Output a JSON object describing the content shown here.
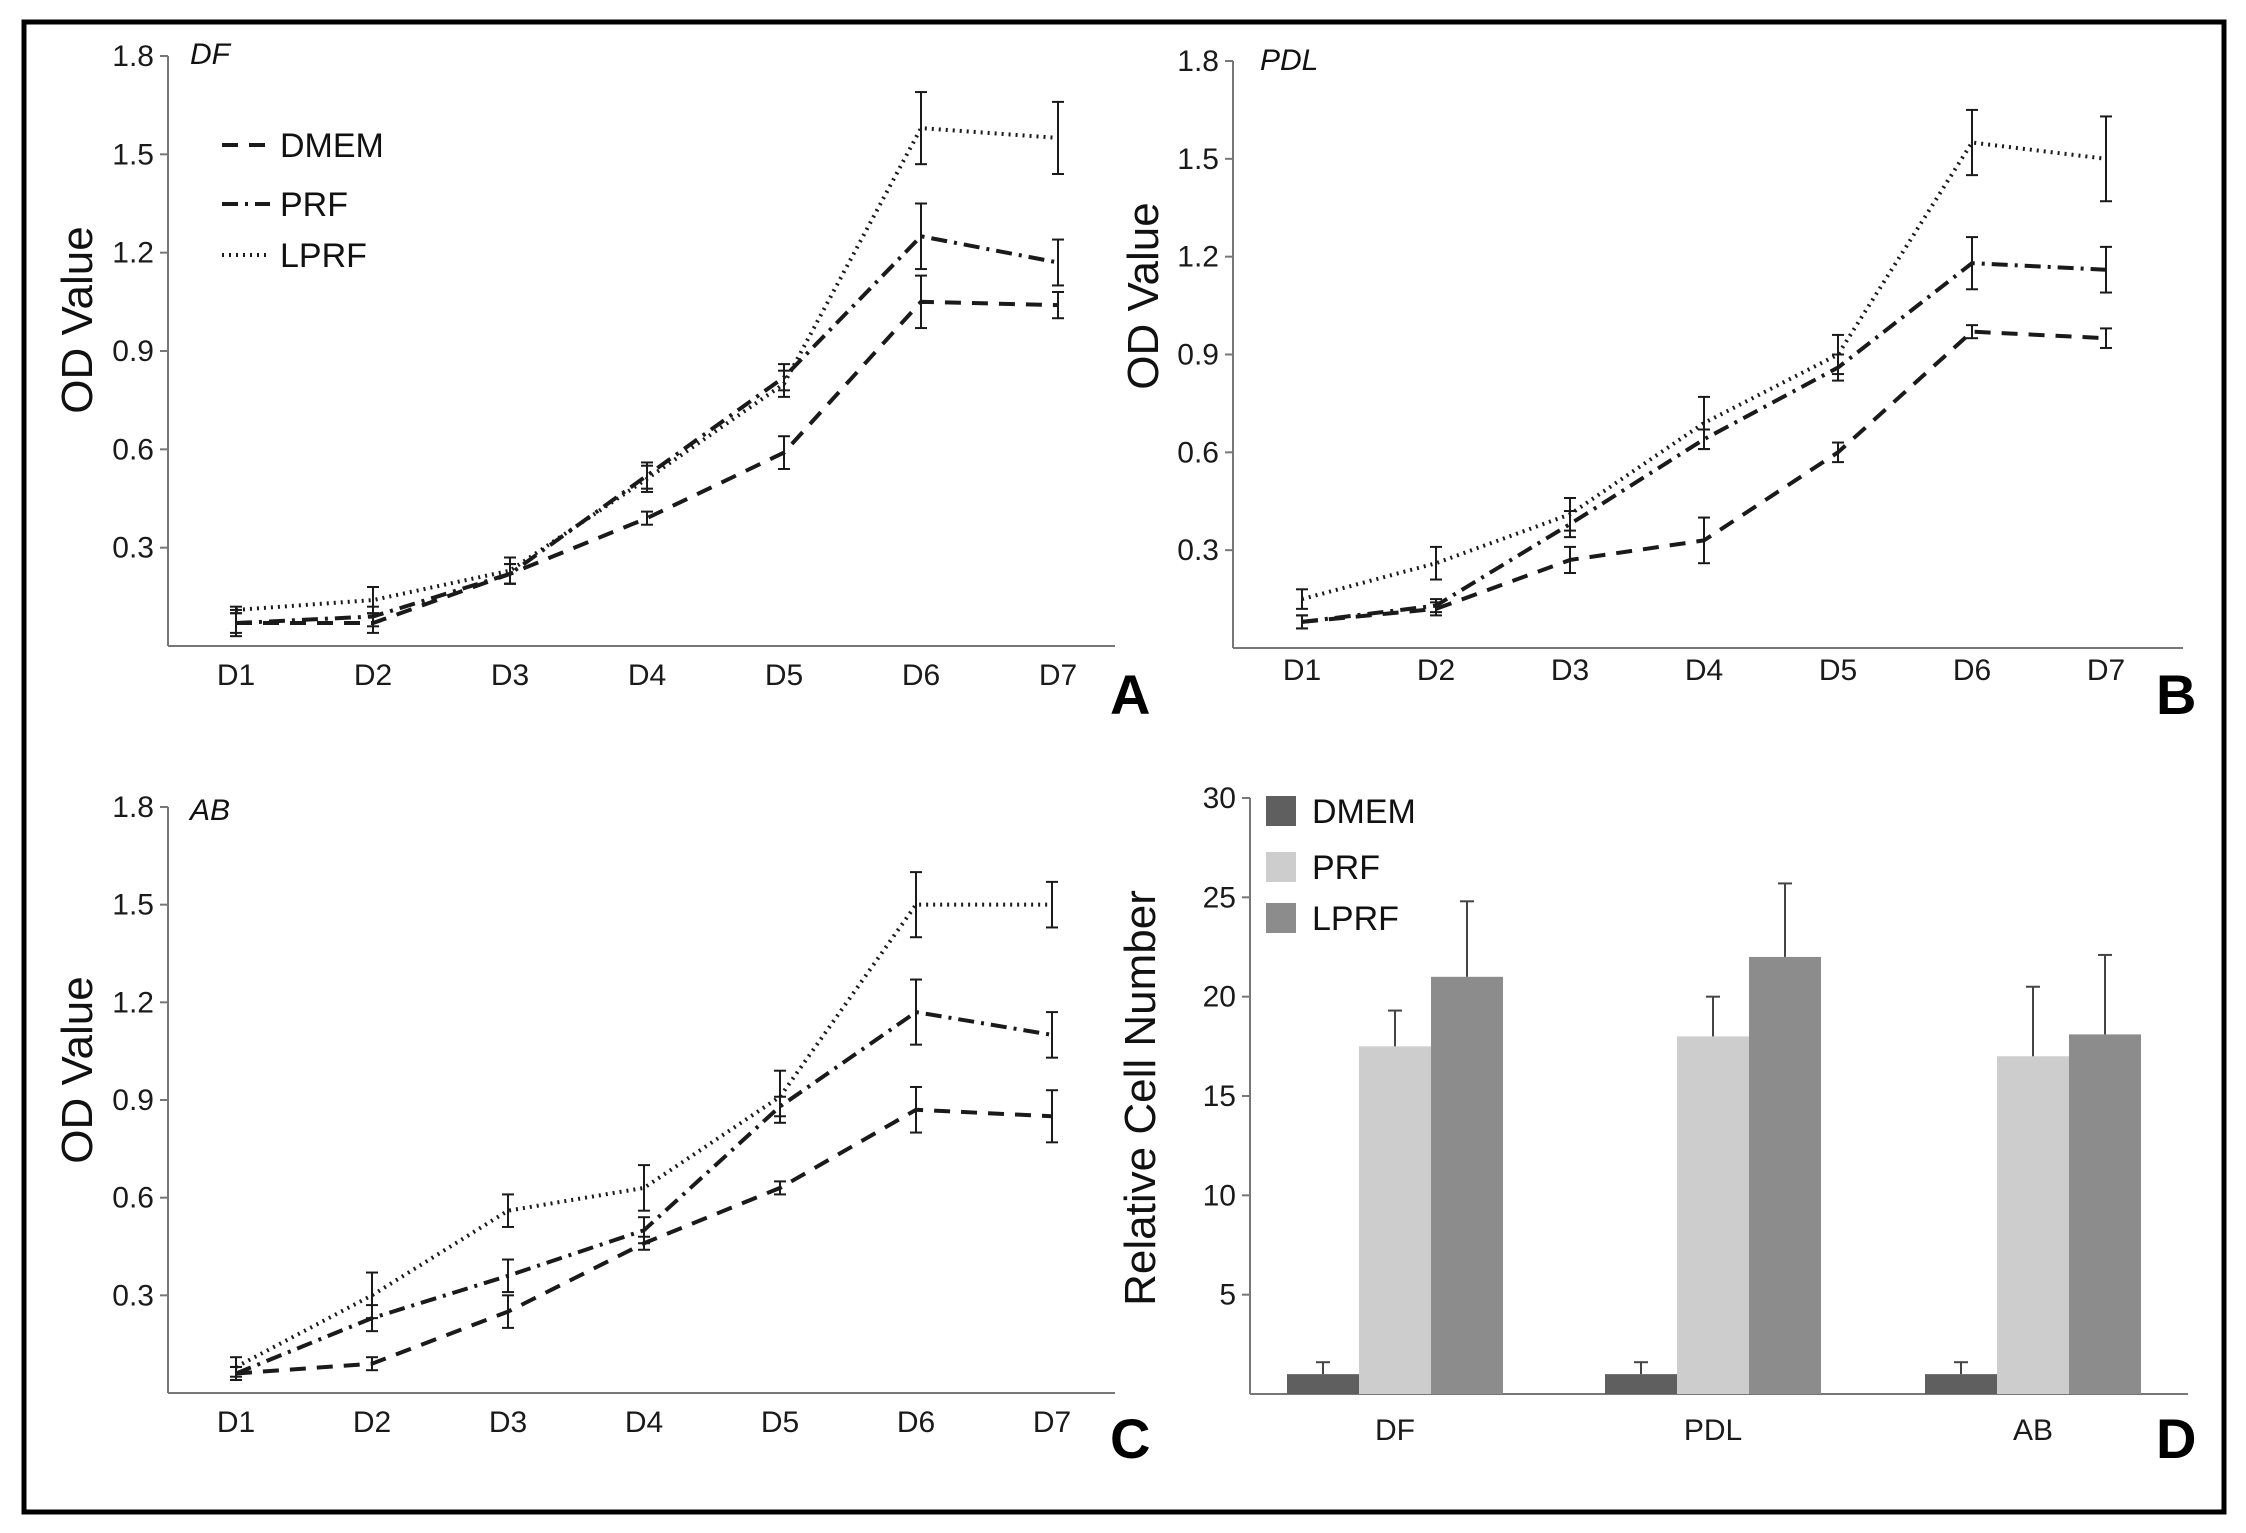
{
  "chart_data": [
    {
      "panel": "A",
      "type": "line",
      "title": "DF",
      "ylabel": "OD Value",
      "xlabel": "",
      "categories": [
        "D1",
        "D2",
        "D3",
        "D4",
        "D5",
        "D6",
        "D7"
      ],
      "ylim": [
        0,
        1.8
      ],
      "yticks": [
        "0.3",
        "0.6",
        "0.9",
        "1.2",
        "1.5",
        "1.8"
      ],
      "legend": "top-left",
      "series": [
        {
          "name": "DMEM",
          "style": "dashed",
          "values": [
            0.07,
            0.07,
            0.22,
            0.39,
            0.59,
            1.05,
            1.04
          ],
          "errors": [
            0.03,
            0.03,
            0.03,
            0.02,
            0.05,
            0.08,
            0.04
          ]
        },
        {
          "name": "PRF",
          "style": "dashdot",
          "values": [
            0.07,
            0.09,
            0.22,
            0.52,
            0.82,
            1.25,
            1.17
          ],
          "errors": [
            0.04,
            0.03,
            0.03,
            0.04,
            0.04,
            0.1,
            0.07
          ]
        },
        {
          "name": "LPRF",
          "style": "dotted",
          "values": [
            0.11,
            0.14,
            0.23,
            0.51,
            0.8,
            1.58,
            1.55
          ],
          "errors": [
            0.01,
            0.04,
            0.04,
            0.04,
            0.04,
            0.11,
            0.11
          ]
        }
      ]
    },
    {
      "panel": "B",
      "type": "line",
      "title": "PDL",
      "ylabel": "OD Value",
      "xlabel": "",
      "categories": [
        "D1",
        "D2",
        "D3",
        "D4",
        "D5",
        "D6",
        "D7"
      ],
      "ylim": [
        0,
        1.8
      ],
      "yticks": [
        "0.3",
        "0.6",
        "0.9",
        "1.2",
        "1.5",
        "1.8"
      ],
      "series": [
        {
          "name": "DMEM",
          "style": "dashed",
          "values": [
            0.08,
            0.12,
            0.27,
            0.33,
            0.6,
            0.97,
            0.95
          ],
          "errors": [
            0.02,
            0.02,
            0.04,
            0.07,
            0.03,
            0.02,
            0.03
          ]
        },
        {
          "name": "PRF",
          "style": "dashdot",
          "values": [
            0.08,
            0.13,
            0.38,
            0.64,
            0.86,
            1.18,
            1.16
          ],
          "errors": [
            0.02,
            0.02,
            0.04,
            0.03,
            0.04,
            0.08,
            0.07
          ]
        },
        {
          "name": "LPRF",
          "style": "dotted",
          "values": [
            0.15,
            0.26,
            0.41,
            0.69,
            0.9,
            1.55,
            1.5
          ],
          "errors": [
            0.03,
            0.05,
            0.05,
            0.08,
            0.06,
            0.1,
            0.13
          ]
        }
      ]
    },
    {
      "panel": "C",
      "type": "line",
      "title": "AB",
      "ylabel": "OD Value",
      "xlabel": "",
      "categories": [
        "D1",
        "D2",
        "D3",
        "D4",
        "D5",
        "D6",
        "D7"
      ],
      "ylim": [
        0,
        1.8
      ],
      "yticks": [
        "0.3",
        "0.6",
        "0.9",
        "1.2",
        "1.5",
        "1.8"
      ],
      "series": [
        {
          "name": "DMEM",
          "style": "dashed",
          "values": [
            0.06,
            0.09,
            0.25,
            0.46,
            0.63,
            0.87,
            0.85
          ],
          "errors": [
            0.02,
            0.02,
            0.05,
            0.02,
            0.02,
            0.07,
            0.08
          ]
        },
        {
          "name": "PRF",
          "style": "dashdot",
          "values": [
            0.06,
            0.23,
            0.36,
            0.5,
            0.88,
            1.17,
            1.1
          ],
          "errors": [
            0.02,
            0.04,
            0.05,
            0.04,
            0.03,
            0.1,
            0.07
          ]
        },
        {
          "name": "LPRF",
          "style": "dotted",
          "values": [
            0.08,
            0.3,
            0.56,
            0.63,
            0.91,
            1.5,
            1.5
          ],
          "errors": [
            0.03,
            0.07,
            0.05,
            0.07,
            0.08,
            0.1,
            0.07
          ]
        }
      ]
    },
    {
      "panel": "D",
      "type": "bar",
      "title": "",
      "ylabel": "Relative Cell Number",
      "xlabel": "",
      "categories": [
        "DF",
        "PDL",
        "AB"
      ],
      "ylim": [
        0,
        30
      ],
      "yticks": [
        "5",
        "10",
        "15",
        "20",
        "25",
        "30"
      ],
      "legend": "top-left",
      "series": [
        {
          "name": "DMEM",
          "color": "#5f5f5f",
          "values": [
            1,
            1,
            1
          ],
          "errors": [
            0.6,
            0.6,
            0.6
          ]
        },
        {
          "name": "PRF",
          "color": "#cdcdcd",
          "values": [
            17.5,
            18.0,
            17.0
          ],
          "errors": [
            1.8,
            2.0,
            3.5
          ]
        },
        {
          "name": "LPRF",
          "color": "#8c8c8c",
          "values": [
            21.0,
            22.0,
            18.1
          ],
          "errors": [
            3.8,
            3.7,
            4.0
          ]
        }
      ]
    }
  ]
}
